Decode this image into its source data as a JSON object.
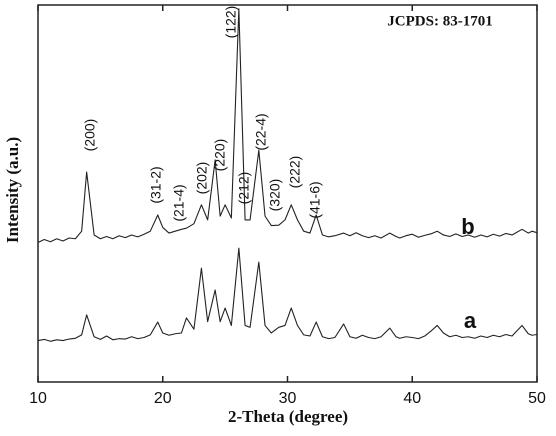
{
  "chart_data": {
    "type": "line",
    "annotation": "JCPDS: 83-1701",
    "xlabel": "2-Theta (degree)",
    "ylabel": "Intensity (a.u.)",
    "peak_labels": [
      "(200)",
      "(31-2)",
      "(21-4)",
      "(202)",
      "(220)",
      "(212)",
      "(122)",
      "(22-4)",
      "(320)",
      "(222)",
      "(41-6)"
    ],
    "x": [
      10,
      10.5,
      11,
      11.5,
      12,
      12.5,
      13,
      13.5,
      13.9,
      14.5,
      15,
      15.5,
      16,
      16.5,
      17,
      17.5,
      18,
      18.5,
      19,
      19.6,
      20,
      20.5,
      21,
      21.5,
      21.9,
      22.5,
      23.1,
      23.6,
      24.2,
      24.6,
      25.0,
      25.5,
      26.1,
      26.6,
      27,
      27.7,
      28.2,
      28.7,
      29.3,
      29.8,
      30.3,
      30.8,
      31.3,
      31.8,
      32.3,
      32.8,
      33.3,
      33.8,
      34.5,
      35,
      35.5,
      36,
      36.5,
      37,
      37.5,
      38.2,
      38.7,
      39,
      39.5,
      40,
      40.5,
      41,
      41.5,
      42,
      42.5,
      43,
      43.5,
      44,
      44.5,
      45,
      45.5,
      46,
      46.5,
      47,
      47.5,
      48,
      48.8,
      49.3,
      49.6,
      50
    ],
    "series": [
      {
        "name": "a",
        "color": "#222222",
        "values": [
          11,
          11.3,
          10.8,
          11.2,
          11,
          11.4,
          11.6,
          12.5,
          17.8,
          12,
          11.3,
          12.2,
          11.2,
          11.5,
          11.4,
          12,
          11.5,
          11.8,
          12.5,
          15.9,
          13,
          12.4,
          12.8,
          13,
          17,
          14,
          30.2,
          16,
          24.4,
          16,
          19.6,
          15,
          35.5,
          15,
          14.5,
          31.8,
          15,
          13,
          14.5,
          15,
          19.6,
          15,
          12.5,
          12.2,
          15.9,
          12,
          11.5,
          11.8,
          15.4,
          12,
          11.6,
          12.4,
          11.8,
          11.5,
          12,
          14.3,
          12,
          11.6,
          12,
          11.8,
          11.5,
          12.2,
          13.5,
          15,
          13,
          12,
          12.4,
          11.8,
          12,
          11.6,
          12.2,
          11.8,
          12.4,
          12,
          12.6,
          12.2,
          15,
          12.8,
          12.4,
          12.6
        ]
      },
      {
        "name": "b",
        "color": "#222222",
        "values": [
          37,
          37.8,
          37.2,
          38,
          37.4,
          38.2,
          38,
          40,
          55.7,
          39,
          38,
          38.6,
          38,
          38.8,
          38.3,
          39,
          38.5,
          39.2,
          40,
          44.3,
          41,
          39.5,
          40,
          40.5,
          40.8,
          42,
          47,
          43,
          58.9,
          44,
          47,
          43.5,
          99,
          43,
          43,
          61.5,
          44,
          41.5,
          41.6,
          43,
          47,
          43,
          40,
          39.5,
          44.3,
          39,
          38.5,
          38.8,
          39.5,
          38.8,
          39.6,
          38.8,
          38.3,
          38.8,
          38.2,
          39.5,
          38.6,
          38.2,
          38.8,
          39.2,
          38.4,
          38.9,
          39.3,
          40,
          39,
          38.6,
          39.3,
          38.6,
          39,
          38.4,
          39,
          38.5,
          39.2,
          38.7,
          39.4,
          39,
          40.5,
          39.5,
          40,
          39.6
        ]
      }
    ],
    "xlim": [
      10,
      50
    ],
    "xticks": [
      10,
      20,
      30,
      40,
      50
    ],
    "ylim": [
      0,
      100
    ]
  }
}
